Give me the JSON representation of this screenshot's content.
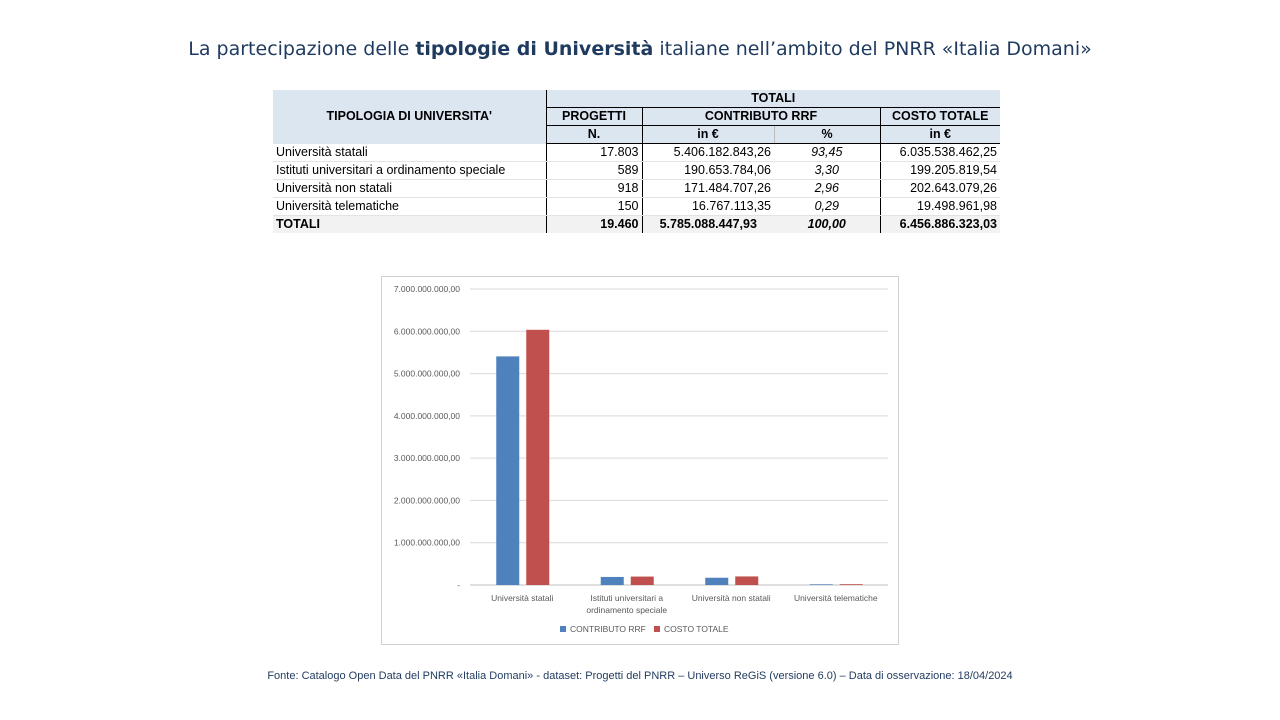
{
  "title": {
    "pre": "La partecipazione delle ",
    "bold": "tipologie di Università",
    "post": " italiane nell’ambito del PNRR «Italia Domani»"
  },
  "table": {
    "h_tipologia": "TIPOLOGIA DI UNIVERSITA'",
    "h_totali": "TOTALI",
    "h_progetti": "PROGETTI",
    "h_contributo": "CONTRIBUTO RRF",
    "h_costo": "COSTO TOTALE",
    "h_n": "N.",
    "h_ineur": "in €",
    "h_pct": "%",
    "h_ineur2": "in €",
    "rows": [
      {
        "label": "Università statali",
        "n": "17.803",
        "contrib": "5.406.182.843,26",
        "pct": "93,45",
        "costo": "6.035.538.462,25"
      },
      {
        "label": "Istituti universitari a ordinamento speciale",
        "n": "589",
        "contrib": "190.653.784,06",
        "pct": "3,30",
        "costo": "199.205.819,54"
      },
      {
        "label": "Università non statali",
        "n": "918",
        "contrib": "171.484.707,26",
        "pct": "2,96",
        "costo": "202.643.079,26"
      },
      {
        "label": "Università telematiche",
        "n": "150",
        "contrib": "16.767.113,35",
        "pct": "0,29",
        "costo": "19.498.961,98"
      }
    ],
    "total": {
      "label": "TOTALI",
      "n": "19.460",
      "contrib": "5.785.088.447,93",
      "pct": "100,00",
      "costo": "6.456.886.323,03"
    }
  },
  "chart_data": {
    "type": "bar",
    "categories": [
      "Università statali",
      "Istituti universitari a ordinamento speciale",
      "Università non statali",
      "Università telematiche"
    ],
    "category_lines": [
      [
        "Università statali"
      ],
      [
        "Istituti universitari a",
        "ordinamento speciale"
      ],
      [
        "Università non statali"
      ],
      [
        "Università telematiche"
      ]
    ],
    "series": [
      {
        "name": "CONTRIBUTO RRF",
        "color": "#4f81bd",
        "values": [
          5406182843.26,
          190653784.06,
          171484707.26,
          16767113.35
        ]
      },
      {
        "name": "COSTO TOTALE",
        "color": "#c0504d",
        "values": [
          6035538462.25,
          199205819.54,
          202643079.26,
          19498961.98
        ]
      }
    ],
    "ylim": [
      0,
      7000000000
    ],
    "yticks": [
      0,
      1000000000,
      2000000000,
      3000000000,
      4000000000,
      5000000000,
      6000000000,
      7000000000
    ],
    "ytick_labels": [
      "-",
      "1.000.000.000,00",
      "2.000.000.000,00",
      "3.000.000.000,00",
      "4.000.000.000,00",
      "5.000.000.000,00",
      "6.000.000.000,00",
      "7.000.000.000,00"
    ],
    "grid": true,
    "legend": "bottom"
  },
  "footer": "Fonte: Catalogo Open Data del PNRR «Italia Domani» - dataset: Progetti del PNRR – Universo ReGiS (versione 6.0)  – Data di osservazione: 18/04/2024"
}
